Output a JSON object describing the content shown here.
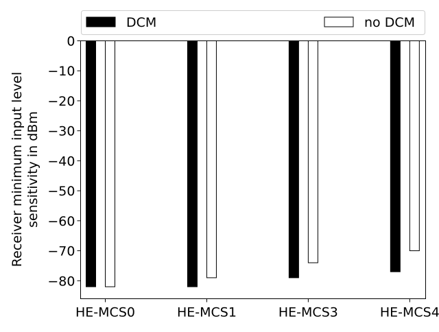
{
  "chart_data": {
    "type": "bar",
    "title": "",
    "xlabel": "",
    "ylabel": [
      "Receiver minimum input level",
      "sensitivity in dBm"
    ],
    "categories": [
      "HE-MCS0",
      "HE-MCS1",
      "HE-MCS3",
      "HE-MCS4"
    ],
    "series": [
      {
        "name": "DCM",
        "values": [
          -82,
          -82,
          -79,
          -77
        ],
        "fill": "#000000"
      },
      {
        "name": "no DCM",
        "values": [
          -82,
          -79,
          -74,
          -70
        ],
        "fill": "#ffffff"
      }
    ],
    "ylim": [
      -86,
      0
    ],
    "yticks": [
      0,
      -10,
      -20,
      -30,
      -40,
      -50,
      -60,
      -70,
      -80
    ],
    "ytick_labels": [
      "0",
      "−10",
      "−20",
      "−30",
      "−40",
      "−50",
      "−60",
      "−70",
      "−80"
    ],
    "grid": false,
    "legend": "top, outside plot, two columns"
  }
}
